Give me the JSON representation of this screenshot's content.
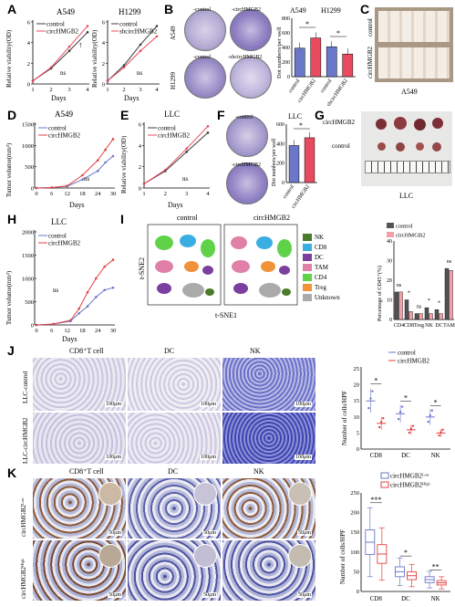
{
  "panels": {
    "A": "A",
    "B": "B",
    "C": "C",
    "D": "D",
    "E": "E",
    "F": "F",
    "G": "G",
    "H": "H",
    "I": "I",
    "J": "J",
    "K": "K"
  },
  "colors": {
    "control": "#3c3c3c",
    "circ": "#e84a5f",
    "blue": "#6b78c9",
    "red": "#e34141",
    "darkgrey": "#555555",
    "pink": "#f2a0a8"
  },
  "A": {
    "left": {
      "title": "A549",
      "ylabel": "Relative viability(OD)",
      "xlabel": "Days",
      "legend": [
        "control",
        "circHMGB2"
      ],
      "annot": "ns",
      "xticks": [
        "1",
        "2",
        "3",
        "4"
      ],
      "yticks": [
        "0",
        "2",
        "4",
        "6"
      ]
    },
    "right": {
      "title": "H1299",
      "ylabel": "Relative viability(OD)",
      "xlabel": "Days",
      "legend": [
        "control",
        "shcircHMGB2"
      ],
      "annot": "ns",
      "xticks": [
        "1",
        "2",
        "3",
        "4"
      ],
      "yticks": [
        "0",
        "2",
        "4",
        "6"
      ]
    }
  },
  "B": {
    "dish_labels": [
      "-control",
      "-circHMGB2",
      "-control",
      "-shcircHMGB2"
    ],
    "row_labels": [
      "A549",
      "H1299"
    ],
    "bar_title": [
      "A549",
      "H1299"
    ],
    "ylabel": "Dot numbers/per well",
    "yticks": [
      "0",
      "200",
      "400",
      "600",
      "800"
    ],
    "categories": [
      "control",
      "circHMGB2",
      "control",
      "shcircHMGB2"
    ],
    "star": "*"
  },
  "C": {
    "labels": [
      "control",
      "circHMGB2"
    ],
    "caption": "A549"
  },
  "D": {
    "title": "A549",
    "ylabel": "Tumor volume(mm³)",
    "xlabel": "Days",
    "legend": [
      "control",
      "circHMGB2"
    ],
    "xticks": [
      "0",
      "6",
      "12",
      "18",
      "24",
      "30"
    ],
    "yticks": [
      "0",
      "500",
      "1000",
      "1500"
    ],
    "annot": "ns"
  },
  "E": {
    "title": "LLC",
    "ylabel": "Relative viability(OD)",
    "xlabel": "Days",
    "legend": [
      "control",
      "circHMGB2"
    ],
    "xticks": [
      "1",
      "2",
      "3",
      "4"
    ],
    "yticks": [
      "0",
      "2",
      "4",
      "6"
    ],
    "annot": "ns"
  },
  "F": {
    "title": "LLC",
    "ylabel": "Dot numbers/per well",
    "yticks": [
      "0",
      "200",
      "400",
      "600"
    ],
    "categories": [
      "control",
      "circHMGB2"
    ],
    "dish_labels": [
      "-control",
      "-circHMGB2"
    ],
    "star": "*"
  },
  "G": {
    "labels": [
      "circHMGB2",
      "control"
    ],
    "caption": "LLC"
  },
  "H": {
    "title": "LLC",
    "ylabel": "Tumor volume(mm³)",
    "xlabel": "Days",
    "legend": [
      "control",
      "circHMGB2"
    ],
    "xticks": [
      "0",
      "6",
      "12",
      "18",
      "24",
      "30"
    ],
    "yticks": [
      "0",
      "500",
      "1000",
      "1500",
      "2000"
    ],
    "annot": "ns"
  },
  "I": {
    "titles": [
      "control",
      "circHMGB2"
    ],
    "xlabel": "t-SNE1",
    "ylabel": "t-SNE2",
    "legend": [
      {
        "name": "NK",
        "color": "#4a7a2a"
      },
      {
        "name": "CD8",
        "color": "#3aaee0"
      },
      {
        "name": "DC",
        "color": "#7b3fa0"
      },
      {
        "name": "TAM",
        "color": "#e07fa8"
      },
      {
        "name": "CD4",
        "color": "#5fd24a"
      },
      {
        "name": "Treg",
        "color": "#f0923a"
      },
      {
        "name": "Unknown",
        "color": "#aaaaaa"
      }
    ]
  },
  "I_bar": {
    "legend": [
      "control",
      "circHMGB2"
    ],
    "ylabel": "Percentage of CD45⁺(%)",
    "categories": [
      "CD4",
      "CD8",
      "Treg",
      "NK",
      "DC",
      "TAM"
    ],
    "yticks": [
      "0",
      "10",
      "20",
      "30",
      "40"
    ],
    "annots": [
      "ns",
      "*",
      "ns",
      "*",
      "*",
      "ns"
    ]
  },
  "J": {
    "col_titles": [
      "CD8⁺T cell",
      "DC",
      "NK"
    ],
    "row_labels": [
      "LLC-control",
      "LLC-circHMGB2"
    ],
    "scale": "100μm",
    "legend": [
      "control",
      "circHMGB2"
    ],
    "ylabel": "Number of cells/HPF",
    "categories": [
      "CD8",
      "DC",
      "NK"
    ],
    "yticks": [
      "0",
      "5",
      "10",
      "15",
      "20",
      "25"
    ],
    "star": "*"
  },
  "K": {
    "col_titles": [
      "CD8⁺T cell",
      "DC",
      "NK"
    ],
    "row_labels": [
      "circHMGB2ᴸᵒʷ",
      "circHMGB2ᴴⁱᵍʰ"
    ],
    "scale": "50μm",
    "legend": [
      "circHMGB2ᴸᵒʷ",
      "circHMGB2ᴴⁱᵍʰ"
    ],
    "ylabel": "Number of cells/HPF",
    "categories": [
      "CD8",
      "DC",
      "NK"
    ],
    "yticks": [
      "0",
      "50",
      "100",
      "150",
      "200",
      "250"
    ],
    "annots": [
      "***",
      "*",
      "**"
    ]
  },
  "chart_data": [
    {
      "type": "line",
      "panel": "A-left",
      "x": [
        1,
        2,
        3,
        4
      ],
      "series": [
        {
          "name": "control",
          "values": [
            0.3,
            1.5,
            3.2,
            5.0
          ]
        },
        {
          "name": "circHMGB2",
          "values": [
            0.3,
            1.6,
            3.6,
            5.6
          ]
        }
      ],
      "ylim": [
        0,
        6
      ]
    },
    {
      "type": "line",
      "panel": "A-right",
      "x": [
        1,
        2,
        3,
        4
      ],
      "series": [
        {
          "name": "control",
          "values": [
            0.3,
            1.8,
            3.8,
            5.6
          ]
        },
        {
          "name": "shcircHMGB2",
          "values": [
            0.3,
            1.6,
            3.2,
            4.6
          ]
        }
      ],
      "ylim": [
        0,
        6
      ]
    },
    {
      "type": "bar",
      "panel": "B",
      "categories": [
        "control",
        "circHMGB2",
        "control",
        "shcircHMGB2"
      ],
      "values": [
        390,
        530,
        410,
        310
      ],
      "ylim": [
        0,
        800
      ]
    },
    {
      "type": "line",
      "panel": "D",
      "x": [
        0,
        6,
        12,
        18,
        24,
        27,
        30
      ],
      "series": [
        {
          "name": "control",
          "values": [
            0,
            10,
            40,
            200,
            400,
            600,
            750
          ]
        },
        {
          "name": "circHMGB2",
          "values": [
            0,
            10,
            50,
            300,
            650,
            900,
            1150
          ]
        }
      ],
      "ylim": [
        0,
        1500
      ]
    },
    {
      "type": "line",
      "panel": "E",
      "x": [
        1,
        2,
        3,
        4
      ],
      "series": [
        {
          "name": "control",
          "values": [
            0.4,
            1.6,
            3.4,
            5.2
          ]
        },
        {
          "name": "circHMGB2",
          "values": [
            0.4,
            1.7,
            3.7,
            5.8
          ]
        }
      ],
      "ylim": [
        0,
        6
      ]
    },
    {
      "type": "bar",
      "panel": "F",
      "categories": [
        "control",
        "circHMGB2"
      ],
      "values": [
        380,
        460
      ],
      "ylim": [
        0,
        600
      ]
    },
    {
      "type": "line",
      "panel": "H",
      "x": [
        0,
        6,
        12,
        15,
        18,
        21,
        24,
        27
      ],
      "series": [
        {
          "name": "control",
          "values": [
            0,
            20,
            80,
            250,
            400,
            600,
            750,
            800
          ]
        },
        {
          "name": "circHMGB2",
          "values": [
            0,
            20,
            100,
            350,
            700,
            1000,
            1250,
            1400
          ]
        }
      ],
      "ylim": [
        0,
        2000
      ]
    },
    {
      "type": "bar",
      "panel": "I-bar",
      "categories": [
        "CD4",
        "CD8",
        "Treg",
        "NK",
        "DC",
        "TAM"
      ],
      "series": [
        {
          "name": "control",
          "values": [
            14,
            10,
            3,
            6,
            5,
            26
          ]
        },
        {
          "name": "circHMGB2",
          "values": [
            14,
            4,
            3,
            3,
            3,
            25
          ]
        }
      ],
      "ylim": [
        0,
        40
      ]
    },
    {
      "type": "scatter",
      "panel": "J-plot",
      "categories": [
        "CD8",
        "DC",
        "NK"
      ],
      "series": [
        {
          "name": "control",
          "values": [
            15,
            11,
            10
          ]
        },
        {
          "name": "circHMGB2",
          "values": [
            8,
            6,
            5
          ]
        }
      ],
      "ylim": [
        0,
        25
      ]
    },
    {
      "type": "box",
      "panel": "K-plot",
      "categories": [
        "CD8",
        "DC",
        "NK"
      ],
      "series": [
        {
          "name": "circHMGB2ᴸᵒʷ",
          "values": [
            125,
            50,
            30
          ]
        },
        {
          "name": "circHMGB2ᴴⁱᵍʰ",
          "values": [
            95,
            40,
            22
          ]
        }
      ],
      "ylim": [
        0,
        250
      ]
    }
  ]
}
